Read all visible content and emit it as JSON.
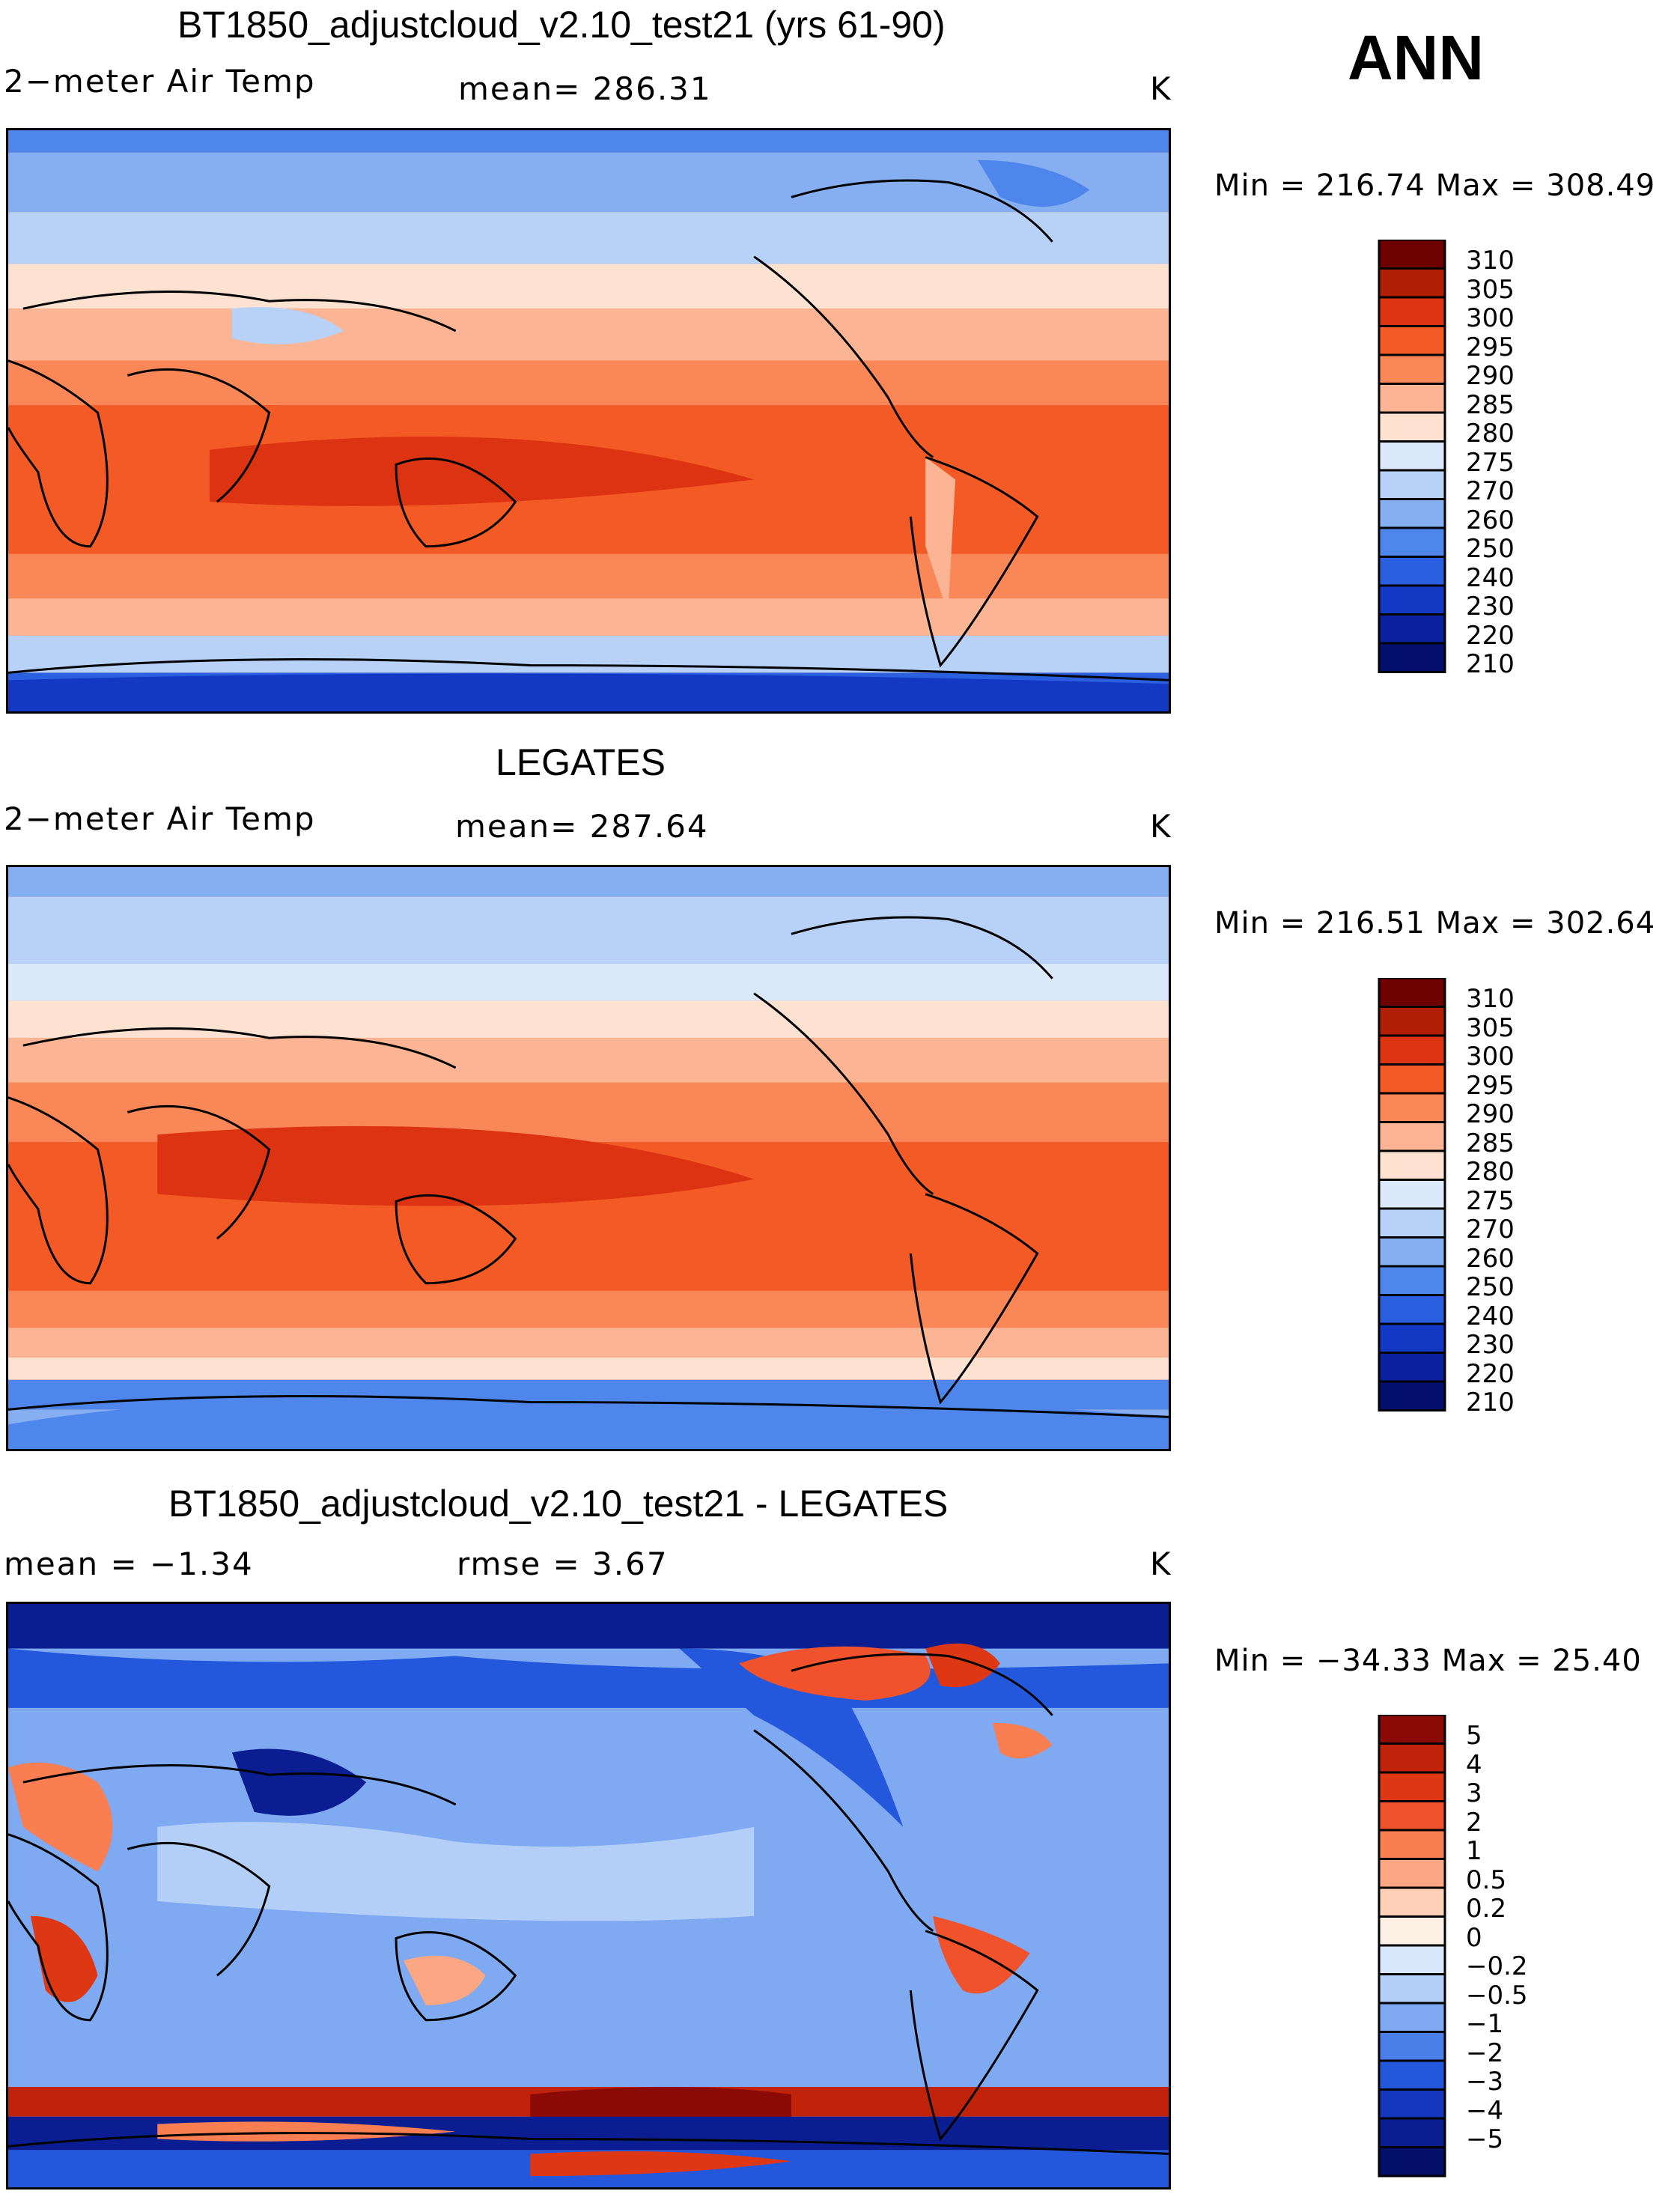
{
  "season": "ANN",
  "unit": "K",
  "panels": [
    {
      "title": "BT1850_adjustcloud_v2.10_test21 (yrs 61-90)",
      "left_label": "2−meter Air Temp",
      "center_label": "mean=  286.31",
      "right_label": "K",
      "minmax": "Min = 216.74  Max = 308.49"
    },
    {
      "title": "LEGATES",
      "left_label": "2−meter Air Temp",
      "center_label": "mean=  287.64",
      "right_label": "K",
      "minmax": "Min = 216.51  Max = 302.64"
    },
    {
      "title": "BT1850_adjustcloud_v2.10_test21 - LEGATES",
      "left_label": "mean =   −1.34",
      "center_label": "rmse =     3.67",
      "right_label": "K",
      "minmax": "Min = −34.33  Max =   25.40"
    }
  ],
  "chart_data": [
    {
      "type": "heatmap",
      "title": "BT1850_adjustcloud_v2.10_test21 (yrs 61-90)",
      "variable": "2-meter Air Temp",
      "units": "K",
      "mean": 286.31,
      "min": 216.74,
      "max": 308.49,
      "colorbar_levels": [
        "310",
        "305",
        "300",
        "295",
        "290",
        "285",
        "280",
        "275",
        "270",
        "260",
        "250",
        "240",
        "230",
        "220",
        "210"
      ],
      "colorbar_colors": [
        "#6e0000",
        "#b01e05",
        "#dc3412",
        "#f45a26",
        "#f98758",
        "#fbb595",
        "#fde2d2",
        "#dbe9fb",
        "#b7d1f7",
        "#86aff2",
        "#4f86ec",
        "#2a60e0",
        "#1338c3",
        "#0c21a0",
        "#05106e"
      ]
    },
    {
      "type": "heatmap",
      "title": "LEGATES",
      "variable": "2-meter Air Temp",
      "units": "K",
      "mean": 287.64,
      "min": 216.51,
      "max": 302.64,
      "colorbar_levels": [
        "310",
        "305",
        "300",
        "295",
        "290",
        "285",
        "280",
        "275",
        "270",
        "260",
        "250",
        "240",
        "230",
        "220",
        "210"
      ],
      "colorbar_colors": [
        "#6e0000",
        "#b01e05",
        "#dc3412",
        "#f45a26",
        "#f98758",
        "#fbb595",
        "#fde2d2",
        "#dbe9fb",
        "#b7d1f7",
        "#86aff2",
        "#4f86ec",
        "#2a60e0",
        "#1338c3",
        "#0c21a0",
        "#05106e"
      ]
    },
    {
      "type": "heatmap",
      "title": "BT1850_adjustcloud_v2.10_test21 - LEGATES",
      "units": "K",
      "mean": -1.34,
      "rmse": 3.67,
      "min": -34.33,
      "max": 25.4,
      "colorbar_levels": [
        "5",
        "4",
        "3",
        "2",
        "1",
        "0.5",
        "0.2",
        "0",
        "−0.2",
        "−0.5",
        "−1",
        "−2",
        "−3",
        "−4",
        "−5"
      ],
      "colorbar_colors": [
        "#8b0a05",
        "#c0220a",
        "#dd3714",
        "#f0522b",
        "#f97e52",
        "#fba783",
        "#fdd0b8",
        "#fdf1e6",
        "#d8e7fb",
        "#b3cff7",
        "#7fa9f1",
        "#4a7ee9",
        "#2458dc",
        "#1336bd",
        "#0a1e92",
        "#04106a"
      ]
    }
  ]
}
